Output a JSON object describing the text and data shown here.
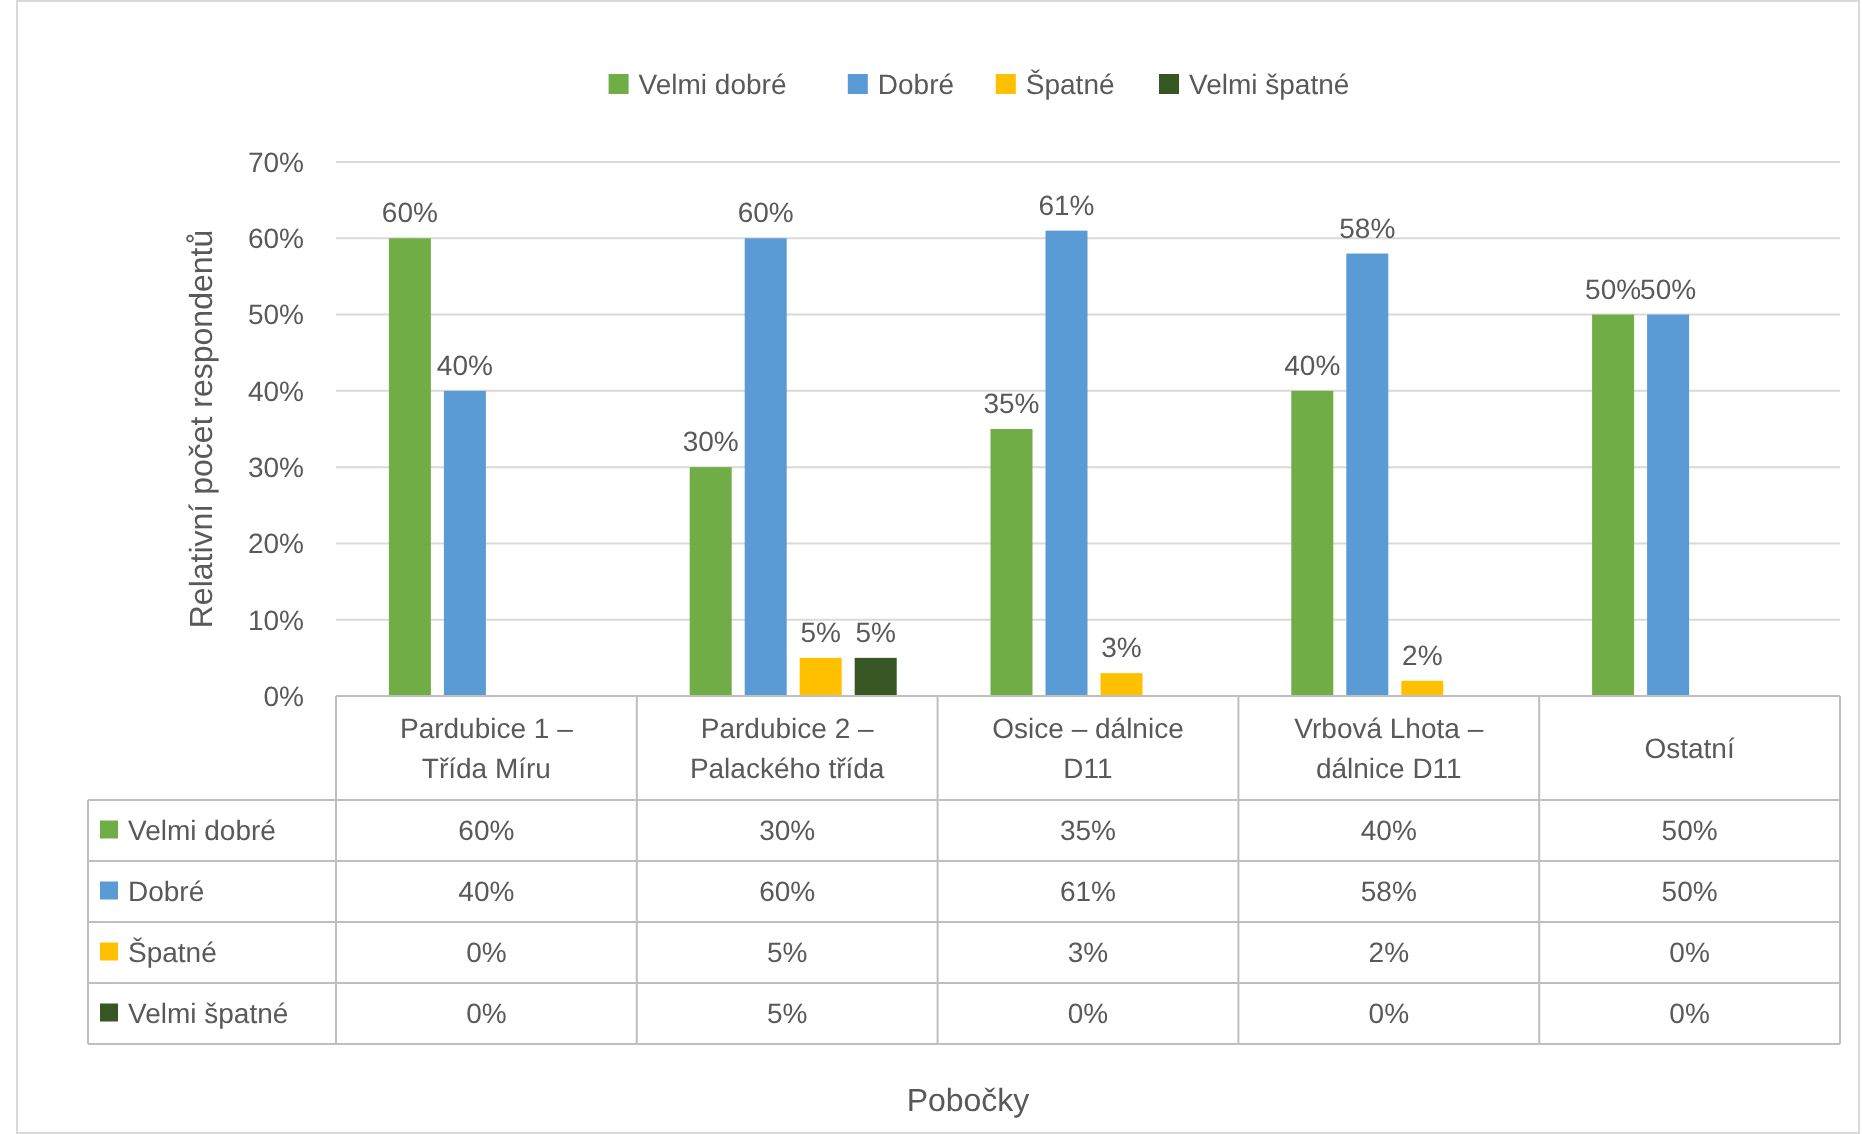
{
  "chart_data": {
    "type": "bar",
    "annotations": [
      "Pobočky"
    ],
    "ylabel": "Relativní počet respondentů",
    "categories": [
      "Pardubice 1 – Třída Míru",
      "Pardubice 2 – Palackého třída",
      "Osice – dálnice D11",
      "Vrbová Lhota – dálnice D11",
      "Ostatní"
    ],
    "series": [
      {
        "name": "Velmi dobré",
        "color": "#70ad47",
        "values": [
          60,
          30,
          35,
          40,
          50
        ],
        "value_labels": [
          "60%",
          "30%",
          "35%",
          "40%",
          "50%"
        ]
      },
      {
        "name": "Dobré",
        "color": "#5b9bd5",
        "values": [
          40,
          60,
          61,
          58,
          50
        ],
        "value_labels": [
          "40%",
          "60%",
          "61%",
          "58%",
          "50%"
        ]
      },
      {
        "name": "Špatné",
        "color": "#ffc000",
        "values": [
          0,
          5,
          3,
          2,
          0
        ],
        "value_labels": [
          "0%",
          "5%",
          "3%",
          "2%",
          "0%"
        ]
      },
      {
        "name": "Velmi špatné",
        "color": "#375623",
        "values": [
          0,
          5,
          0,
          0,
          0
        ],
        "value_labels": [
          "0%",
          "5%",
          "0%",
          "0%",
          "0%"
        ]
      }
    ],
    "ylim": [
      0,
      70
    ],
    "yticks": [
      {
        "value": 0,
        "label": "0%"
      },
      {
        "value": 10,
        "label": "10%"
      },
      {
        "value": 20,
        "label": "20%"
      },
      {
        "value": 30,
        "label": "30%"
      },
      {
        "value": 40,
        "label": "40%"
      },
      {
        "value": 50,
        "label": "50%"
      },
      {
        "value": 60,
        "label": "60%"
      },
      {
        "value": 70,
        "label": "70%"
      }
    ],
    "grid": "y",
    "legend": "top"
  }
}
